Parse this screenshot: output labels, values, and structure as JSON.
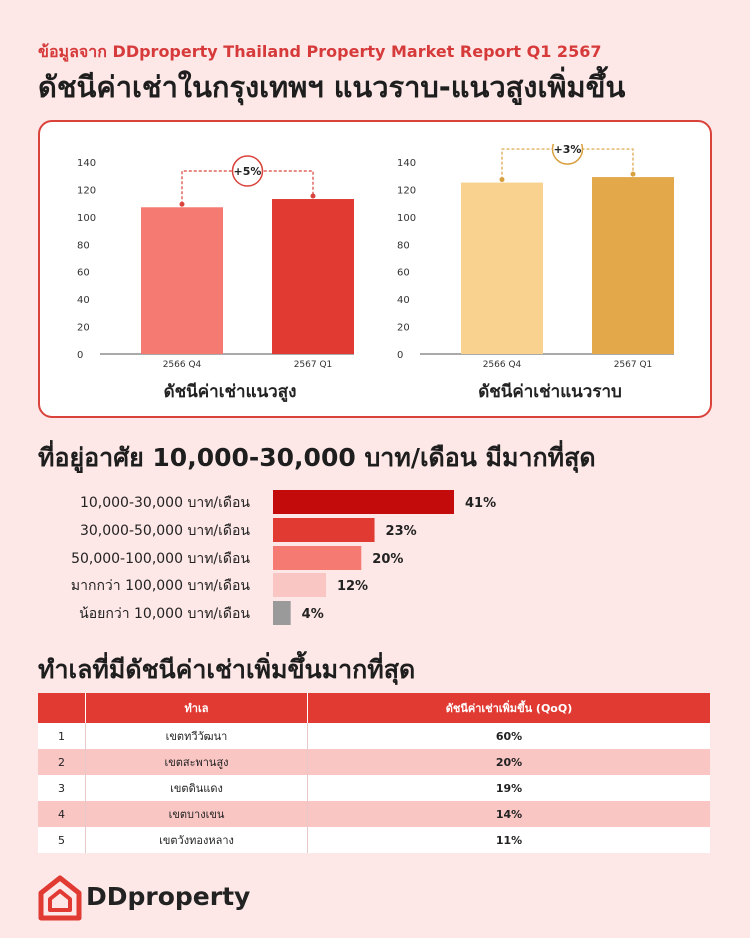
{
  "header": {
    "source_prefix": "ข้อมูลจาก",
    "source_name": "DDproperty Thailand Property Market Report Q1 2567",
    "title": "ดัชนีค่าเช่าในกรุงเทพฯ แนวราบ-แนวสูงเพิ่มขึ้น"
  },
  "chart_data": [
    {
      "type": "bar",
      "title": "ดัชนีค่าเช่าแนวสูง",
      "categories": [
        "2566 Q4",
        "2567 Q1"
      ],
      "values": [
        107,
        113
      ],
      "ylim": [
        0,
        140
      ],
      "yticks": [
        "0",
        "20",
        "40",
        "60",
        "80",
        "100",
        "120",
        "140"
      ],
      "annotation": "+5%",
      "colors": [
        "#f47a72",
        "#e03a33"
      ],
      "accent": "#d9433b"
    },
    {
      "type": "bar",
      "title": "ดัชนีค่าเช่าแนวราบ",
      "categories": [
        "2566 Q4",
        "2567 Q1"
      ],
      "values": [
        125,
        129
      ],
      "ylim": [
        0,
        140
      ],
      "yticks": [
        "0",
        "20",
        "40",
        "60",
        "80",
        "100",
        "120",
        "140"
      ],
      "annotation": "+3%",
      "colors": [
        "#f9d28f",
        "#e3a84a"
      ],
      "accent": "#d9a040"
    },
    {
      "type": "bar",
      "orientation": "horizontal",
      "title": "ที่อยู่อาศัย 10,000-30,000 บาท/เดือน มีมากที่สุด",
      "categories": [
        "10,000-30,000 บาท/เดือน",
        "30,000-50,000 บาท/เดือน",
        "50,000-100,000 บาท/เดือน",
        "มากกว่า 100,000 บาท/เดือน",
        "น้อยกว่า 10,000 บาท/เดือน"
      ],
      "values": [
        41,
        23,
        20,
        12,
        4
      ],
      "labels": [
        "41%",
        "23%",
        "20%",
        "12%",
        "4%"
      ],
      "colors": [
        "#c30b0b",
        "#e03a33",
        "#f47a72",
        "#f9c6c4",
        "#9a9a9a"
      ]
    }
  ],
  "table": {
    "title": "ทำเลที่มีดัชนีค่าเช่าเพิ่มขึ้นมากที่สุด",
    "headers": [
      "",
      "ทำเล",
      "ดัชนีค่าเช่าเพิ่มขึ้น (QoQ)"
    ],
    "rows": [
      {
        "rank": "1",
        "area": "เขตทวีวัฒนา",
        "change": "60%"
      },
      {
        "rank": "2",
        "area": "เขตสะพานสูง",
        "change": "20%"
      },
      {
        "rank": "3",
        "area": "เขตดินแดง",
        "change": "19%"
      },
      {
        "rank": "4",
        "area": "เขตบางเขน",
        "change": "14%"
      },
      {
        "rank": "5",
        "area": "เขตวังทองหลาง",
        "change": "11%"
      }
    ]
  },
  "footer": {
    "brand": "DDproperty",
    "logo_icon": "ddproperty-logo-icon"
  }
}
